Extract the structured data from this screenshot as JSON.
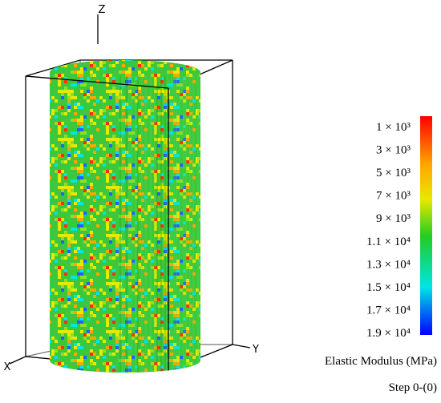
{
  "axes": {
    "z": "Z",
    "y": "Y",
    "x": "X"
  },
  "colorbar": {
    "labels": [
      "1 × 10³",
      "3 × 10³",
      "5 × 10³",
      "7 × 10³",
      "9 × 10³",
      "1.1 × 10⁴",
      "1.3 × 10⁴",
      "1.5 × 10⁴",
      "1.7 × 10⁴",
      "1.9 × 10⁴"
    ],
    "title": "Elastic Modulus (MPa)"
  },
  "step": "Step 0-(0)"
}
